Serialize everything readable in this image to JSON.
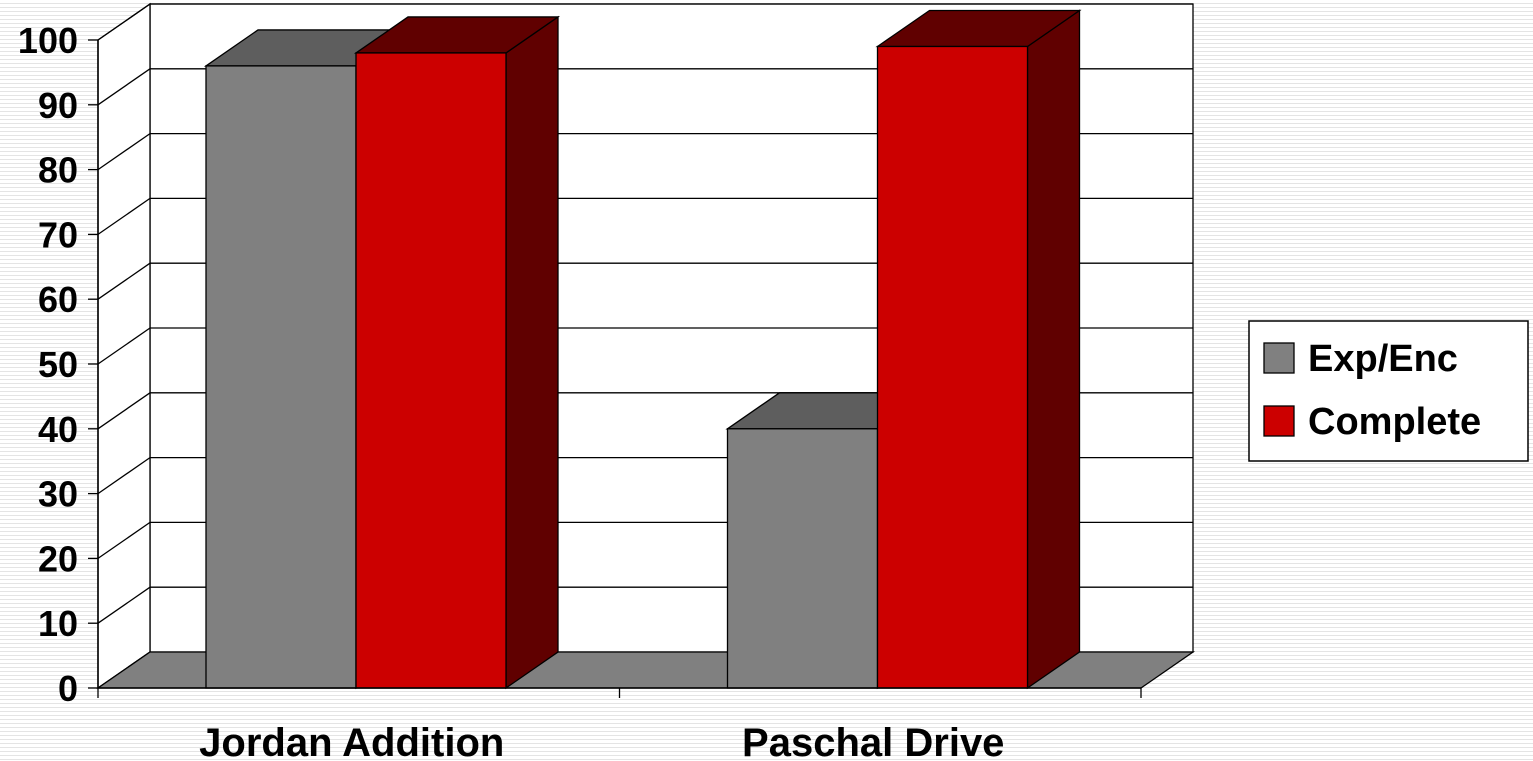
{
  "chart_data": {
    "type": "bar",
    "categories": [
      "Jordan Addition",
      "Paschal Drive"
    ],
    "series": [
      {
        "name": "Exp/Enc",
        "values": [
          96,
          40
        ],
        "color": "#808080",
        "side_color": "#5e5e5e"
      },
      {
        "name": "Complete",
        "values": [
          98,
          99
        ],
        "color": "#cc0000",
        "side_color": "#600000"
      }
    ],
    "ylim": [
      0,
      100
    ],
    "yticks": [
      0,
      10,
      20,
      30,
      40,
      50,
      60,
      70,
      80,
      90,
      100
    ],
    "grid": true,
    "three_d": true,
    "legend_position": "right",
    "title": "",
    "xlabel": "",
    "ylabel": ""
  }
}
